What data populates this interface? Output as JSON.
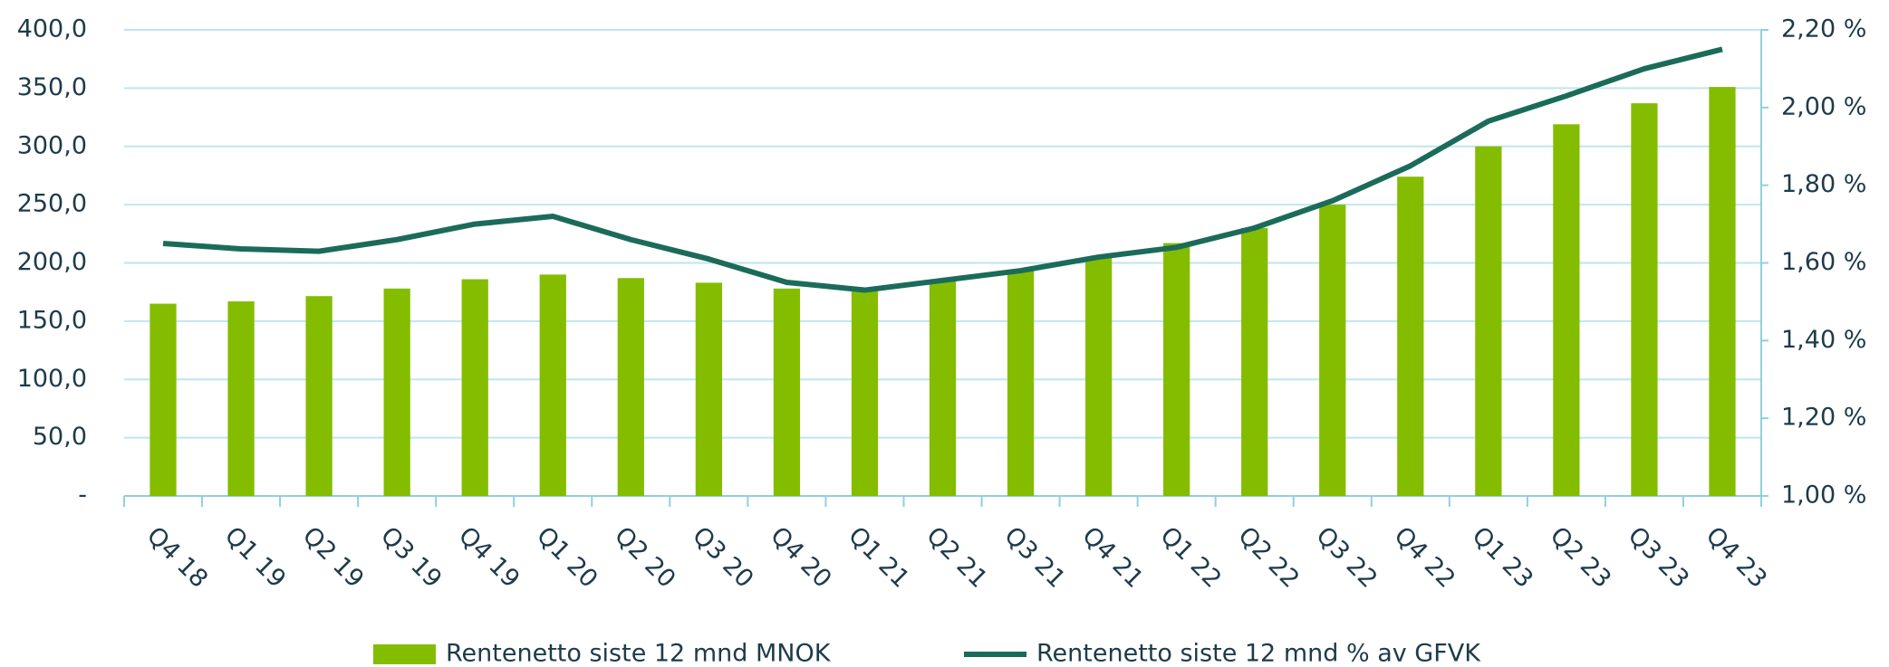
{
  "chart_data": {
    "type": "bar+line",
    "categories": [
      "Q4 18",
      "Q1 19",
      "Q2 19",
      "Q3 19",
      "Q4 19",
      "Q1 20",
      "Q2 20",
      "Q3 20",
      "Q4 20",
      "Q1 21",
      "Q2 21",
      "Q3 21",
      "Q4 21",
      "Q1 22",
      "Q2 22",
      "Q3 22",
      "Q4 22",
      "Q1 23",
      "Q2 23",
      "Q3 23",
      "Q4 23"
    ],
    "series": [
      {
        "name": "Rentenetto siste 12 mnd MNOK",
        "type": "bar",
        "color": "#84bd00",
        "values": [
          165,
          167,
          171.5,
          178,
          186,
          190,
          187,
          183,
          178,
          178,
          185,
          193,
          205,
          217,
          230,
          250,
          274,
          300,
          319,
          337,
          351
        ]
      },
      {
        "name": "Rentenetto siste 12 mnd % av GFVK",
        "type": "line",
        "color": "#1b6b5a",
        "axis": "y2",
        "values": [
          1.65,
          1.636,
          1.63,
          1.66,
          1.7,
          1.72,
          1.66,
          1.61,
          1.55,
          1.53,
          1.555,
          1.58,
          1.615,
          1.64,
          1.69,
          1.76,
          1.85,
          1.965,
          2.03,
          2.1,
          2.15
        ]
      }
    ],
    "ylim": [
      0,
      400
    ],
    "yticks": [
      {
        "value": 0,
        "label": "-"
      },
      {
        "value": 50,
        "label": "50,0"
      },
      {
        "value": 100,
        "label": "100,0"
      },
      {
        "value": 150,
        "label": "150,0"
      },
      {
        "value": 200,
        "label": "200,0"
      },
      {
        "value": 250,
        "label": "250,0"
      },
      {
        "value": 300,
        "label": "300,0"
      },
      {
        "value": 350,
        "label": "350,0"
      },
      {
        "value": 400,
        "label": "400,0"
      }
    ],
    "y2lim": [
      1.0,
      2.2
    ],
    "y2ticks": [
      {
        "value": 1.0,
        "label": "1,00 %"
      },
      {
        "value": 1.2,
        "label": "1,20 %"
      },
      {
        "value": 1.4,
        "label": "1,40 %"
      },
      {
        "value": 1.6,
        "label": "1,60 %"
      },
      {
        "value": 1.8,
        "label": "1,80 %"
      },
      {
        "value": 2.0,
        "label": "2,00 %"
      },
      {
        "value": 2.2,
        "label": "2,20 %"
      }
    ],
    "grid": true,
    "legend": "bottom"
  }
}
